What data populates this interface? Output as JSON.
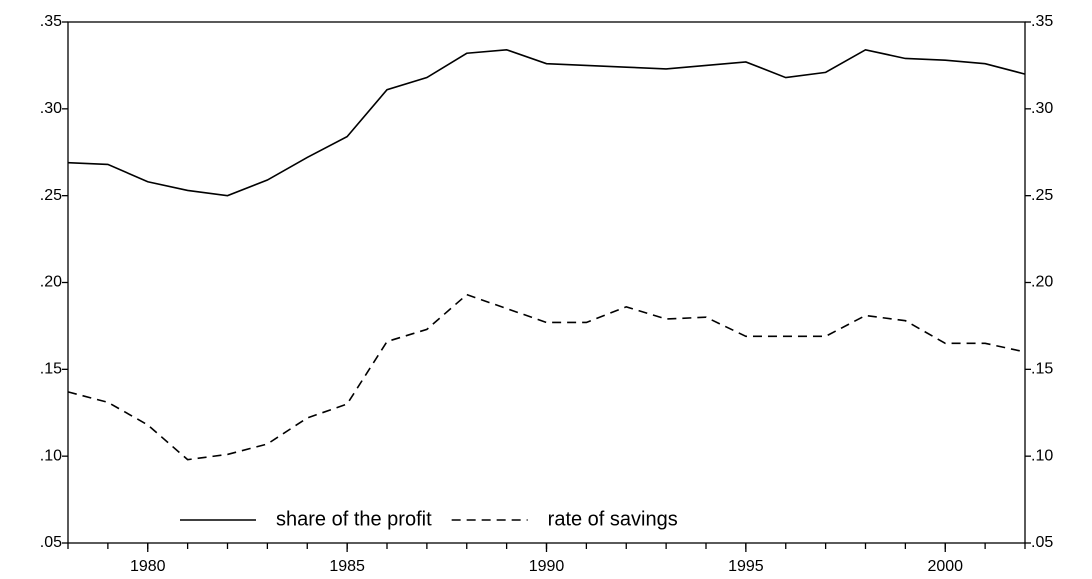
{
  "chart_data": {
    "type": "line",
    "x": [
      1978,
      1979,
      1980,
      1981,
      1982,
      1983,
      1984,
      1985,
      1986,
      1987,
      1988,
      1989,
      1990,
      1991,
      1992,
      1993,
      1994,
      1995,
      1996,
      1997,
      1998,
      1999,
      2000,
      2001,
      2002
    ],
    "series": [
      {
        "name": "share of the profit",
        "color": "#000000",
        "style": "solid",
        "values": [
          0.269,
          0.268,
          0.258,
          0.253,
          0.25,
          0.259,
          0.272,
          0.284,
          0.311,
          0.318,
          0.332,
          0.334,
          0.326,
          0.325,
          0.324,
          0.323,
          0.325,
          0.327,
          0.318,
          0.321,
          0.334,
          0.329,
          0.328,
          0.326,
          0.32
        ]
      },
      {
        "name": "rate of savings",
        "color": "#000000",
        "style": "dashed",
        "values": [
          0.137,
          0.131,
          0.118,
          0.098,
          0.101,
          0.107,
          0.122,
          0.13,
          0.166,
          0.173,
          0.193,
          0.185,
          0.177,
          0.177,
          0.186,
          0.179,
          0.18,
          0.169,
          0.169,
          0.169,
          0.181,
          0.178,
          0.165,
          0.165,
          0.16
        ]
      }
    ],
    "xlim": [
      1978,
      2002
    ],
    "xticks": [
      1980,
      1985,
      1990,
      1995,
      2000
    ],
    "ylim": [
      0.05,
      0.35
    ],
    "yticks": [
      {
        "value": 0.05,
        "label": ".05"
      },
      {
        "value": 0.1,
        "label": ".10"
      },
      {
        "value": 0.15,
        "label": ".15"
      },
      {
        "value": 0.2,
        "label": ".20"
      },
      {
        "value": 0.25,
        "label": ".25"
      },
      {
        "value": 0.3,
        "label": ".30"
      },
      {
        "value": 0.35,
        "label": ".35"
      }
    ],
    "y2lim": [
      0.05,
      0.35
    ],
    "y2ticks": [
      {
        "value": 0.05,
        "label": ".05"
      },
      {
        "value": 0.1,
        "label": ".10"
      },
      {
        "value": 0.15,
        "label": ".15"
      },
      {
        "value": 0.2,
        "label": ".20"
      },
      {
        "value": 0.25,
        "label": ".25"
      },
      {
        "value": 0.3,
        "label": ".30"
      },
      {
        "value": 0.35,
        "label": ".35"
      }
    ],
    "grid": false,
    "legend": "bottom"
  }
}
